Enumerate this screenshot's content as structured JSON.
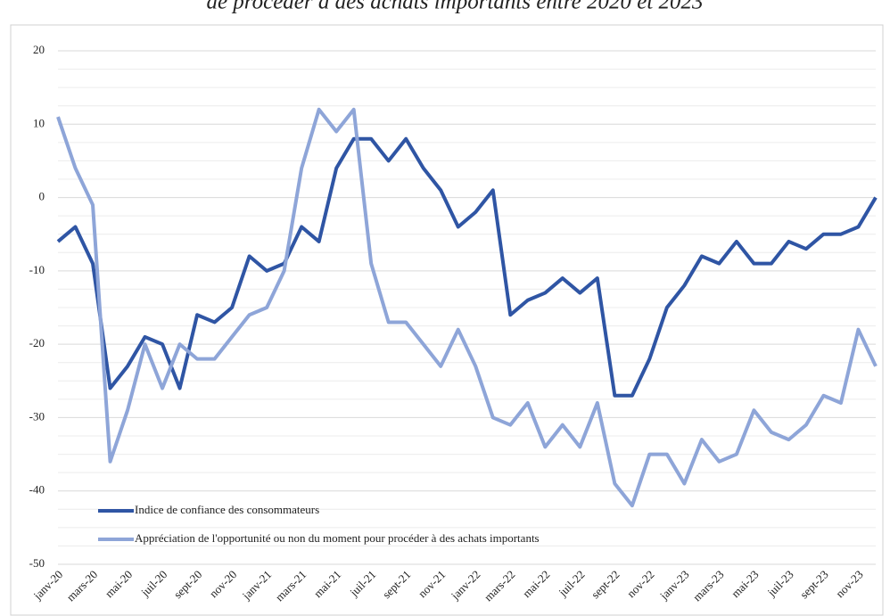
{
  "chart_data": {
    "type": "line",
    "title": "de procéder à des achats importants entre 2020 et 2023",
    "categories": [
      "janv-20",
      null,
      "mars-20",
      null,
      "mai-20",
      null,
      "juil-20",
      null,
      "sept-20",
      null,
      "nov-20",
      null,
      "janv-21",
      null,
      "mars-21",
      null,
      "mai-21",
      null,
      "juil-21",
      null,
      "sept-21",
      null,
      "nov-21",
      null,
      "janv-22",
      null,
      "mars-22",
      null,
      "mai-22",
      null,
      "juil-22",
      null,
      "sept-22",
      null,
      "nov-22",
      null,
      "janv-23",
      null,
      "mars-23",
      null,
      "mai-23",
      null,
      "juil-23",
      null,
      "sept-23",
      null,
      "nov-23",
      null
    ],
    "series": [
      {
        "name": "Indice de confiance des consommateurs",
        "color": "#2f55a4",
        "values": [
          -6,
          -4,
          -9,
          -26,
          -23,
          -19,
          -20,
          -26,
          -16,
          -17,
          -15,
          -8,
          -10,
          -9,
          -4,
          -6,
          4,
          8,
          8,
          5,
          8,
          4,
          1,
          -4,
          -2,
          1,
          -16,
          -14,
          -13,
          -11,
          -13,
          -11,
          -27,
          -27,
          -22,
          -15,
          -12,
          -8,
          -9,
          -6,
          -9,
          -9,
          -6,
          -7,
          -5,
          -5,
          -4,
          0
        ]
      },
      {
        "name": "Appréciation de l'opportunité ou non du moment pour procéder à des achats importants",
        "color": "#8ea5d8",
        "values": [
          11,
          4,
          -1,
          -36,
          -29,
          -20,
          -26,
          -20,
          -22,
          -22,
          -19,
          -16,
          -15,
          -10,
          4,
          12,
          9,
          12,
          -9,
          -17,
          -17,
          -20,
          -23,
          -18,
          -23,
          -30,
          -31,
          -28,
          -34,
          -31,
          -34,
          -28,
          -39,
          -42,
          -35,
          -35,
          -39,
          -33,
          -36,
          -35,
          -29,
          -32,
          -33,
          -31,
          -27,
          -28,
          -18,
          -23
        ]
      }
    ],
    "ylim": [
      -50,
      20
    ],
    "yticks": [
      -50,
      -40,
      -30,
      -20,
      -10,
      0,
      10,
      20
    ],
    "minor_yticks": [
      -47.5,
      -45,
      -42.5,
      -37.5,
      -35,
      -32.5,
      -27.5,
      -25,
      -22.5,
      -17.5,
      -15,
      -12.5,
      -7.5,
      -5,
      -2.5,
      2.5,
      5,
      7.5,
      12.5,
      15,
      17.5
    ],
    "grid": true,
    "legend": "lower left"
  }
}
